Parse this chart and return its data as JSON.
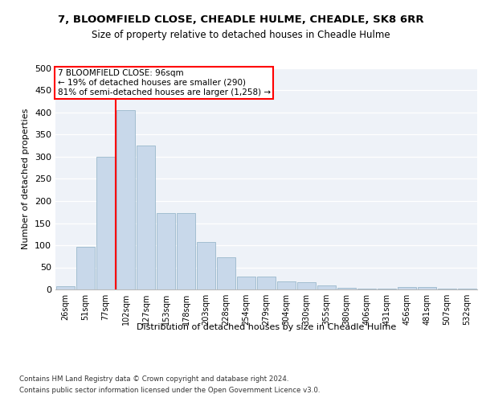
{
  "title": "7, BLOOMFIELD CLOSE, CHEADLE HULME, CHEADLE, SK8 6RR",
  "subtitle": "Size of property relative to detached houses in Cheadle Hulme",
  "xlabel": "Distribution of detached houses by size in Cheadle Hulme",
  "ylabel": "Number of detached properties",
  "bar_color": "#c8d8ea",
  "bar_edgecolor": "#9ab8cc",
  "categories": [
    "26sqm",
    "51sqm",
    "77sqm",
    "102sqm",
    "127sqm",
    "153sqm",
    "178sqm",
    "203sqm",
    "228sqm",
    "254sqm",
    "279sqm",
    "304sqm",
    "330sqm",
    "355sqm",
    "380sqm",
    "406sqm",
    "431sqm",
    "456sqm",
    "481sqm",
    "507sqm",
    "532sqm"
  ],
  "values": [
    8,
    96,
    300,
    405,
    325,
    172,
    172,
    108,
    72,
    30,
    30,
    18,
    16,
    10,
    4,
    2,
    2,
    5,
    5,
    1,
    1
  ],
  "vline_index": 3,
  "vline_color": "red",
  "annotation_text": "7 BLOOMFIELD CLOSE: 96sqm\n← 19% of detached houses are smaller (290)\n81% of semi-detached houses are larger (1,258) →",
  "annotation_box_color": "white",
  "annotation_box_edgecolor": "red",
  "ylim": [
    0,
    500
  ],
  "yticks": [
    0,
    50,
    100,
    150,
    200,
    250,
    300,
    350,
    400,
    450,
    500
  ],
  "bg_color": "#eef2f8",
  "grid_color": "white",
  "footer_line1": "Contains HM Land Registry data © Crown copyright and database right 2024.",
  "footer_line2": "Contains public sector information licensed under the Open Government Licence v3.0."
}
